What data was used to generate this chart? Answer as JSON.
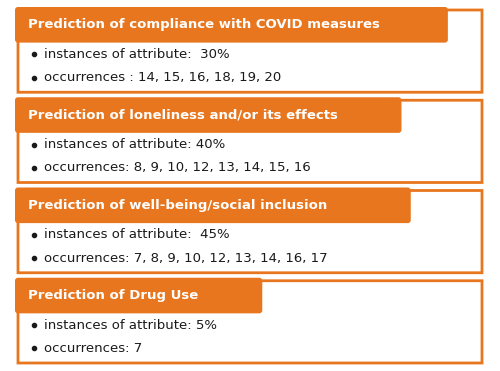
{
  "boxes": [
    {
      "title": "Prediction of compliance with COVID measures",
      "bullet1": "instances of attribute:  30%",
      "bullet2": "occurrences : 14, 15, 16, 18, 19, 20"
    },
    {
      "title": "Prediction of loneliness and/or its effects",
      "bullet1": "instances of attribute: 40%",
      "bullet2": "occurrences: 8, 9, 10, 12, 13, 14, 15, 16"
    },
    {
      "title": "Prediction of well-being/social inclusion",
      "bullet1": "instances of attribute:  45%",
      "bullet2": "occurrences: 7, 8, 9, 10, 12, 13, 14, 16, 17"
    },
    {
      "title": "Prediction of Drug Use",
      "bullet1": "instances of attribute: 5%",
      "bullet2": "occurrences: 7"
    }
  ],
  "orange_color": "#E8761E",
  "border_color": "#E8761E",
  "title_text_color": "#ffffff",
  "bullet_text_color": "#1a1a1a",
  "background_color": "#ffffff",
  "title_fontsize": 9.5,
  "bullet_fontsize": 9.5,
  "fig_width": 5.0,
  "fig_height": 3.71,
  "dpi": 100
}
